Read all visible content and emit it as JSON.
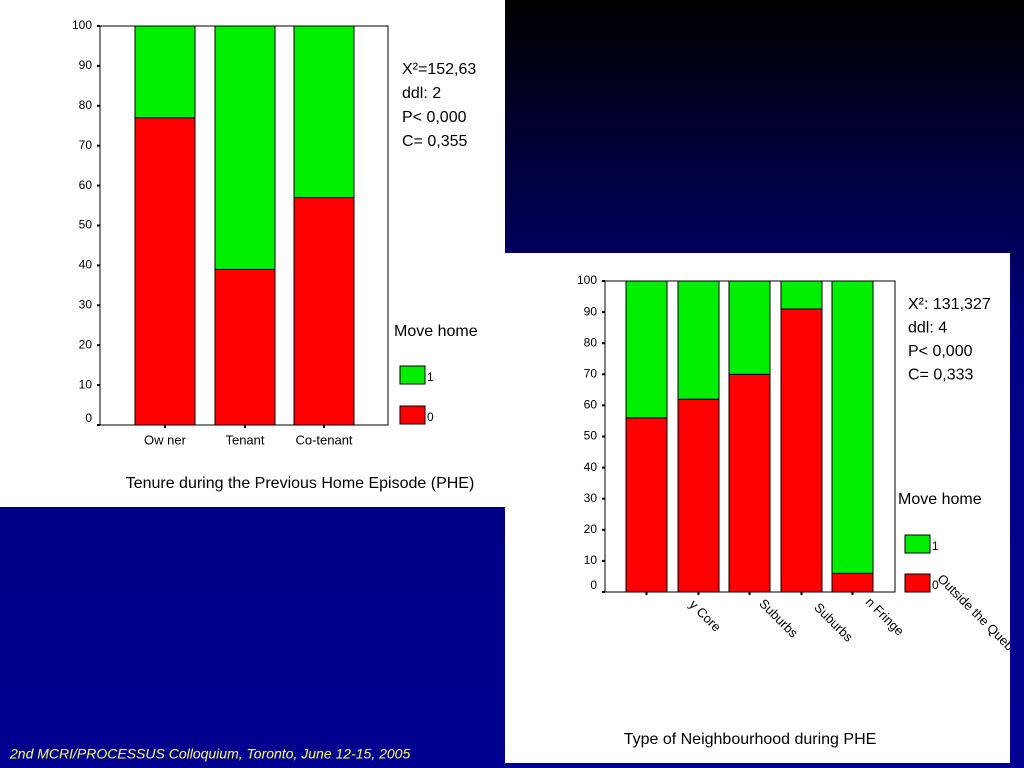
{
  "chart_data": [
    {
      "type": "bar",
      "stacked": true,
      "x_label": "Tenure during the Previous Home Episode (PHE)",
      "categories": [
        "Ow ner",
        "Tenant",
        "Co-tenant"
      ],
      "series": [
        {
          "name": "0",
          "color": "#ff0000",
          "values": [
            77,
            39,
            57
          ]
        },
        {
          "name": "1",
          "color": "#00ee00",
          "values": [
            23,
            61,
            43
          ]
        }
      ],
      "ylim": [
        0,
        100
      ],
      "yticks": [
        0,
        10,
        20,
        30,
        40,
        50,
        60,
        70,
        80,
        90,
        100
      ],
      "legend_title": "Move home",
      "annotations": [
        "X²=152,63",
        "ddl: 2",
        "P< 0,000",
        "C= 0,355"
      ]
    },
    {
      "type": "bar",
      "stacked": true,
      "x_label": "Type of Neighbourhood during PHE",
      "categories": [
        "y Core",
        "Suburbs",
        "Suburbs",
        "n Fringe",
        "Outside the Quebec C"
      ],
      "series": [
        {
          "name": "0",
          "color": "#ff0000",
          "values": [
            56,
            62,
            70,
            91,
            6
          ]
        },
        {
          "name": "1",
          "color": "#00ee00",
          "values": [
            44,
            38,
            30,
            9,
            94
          ]
        }
      ],
      "ylim": [
        0,
        100
      ],
      "yticks": [
        0,
        10,
        20,
        30,
        40,
        50,
        60,
        70,
        80,
        90,
        100
      ],
      "legend_title": "Move home",
      "annotations": [
        "X²: 131,327",
        "ddl: 4",
        "P< 0,000",
        "C= 0,333"
      ]
    }
  ],
  "footer": "2nd MCRI/PROCESSUS Colloquium, Toronto, June 12-15, 2005"
}
